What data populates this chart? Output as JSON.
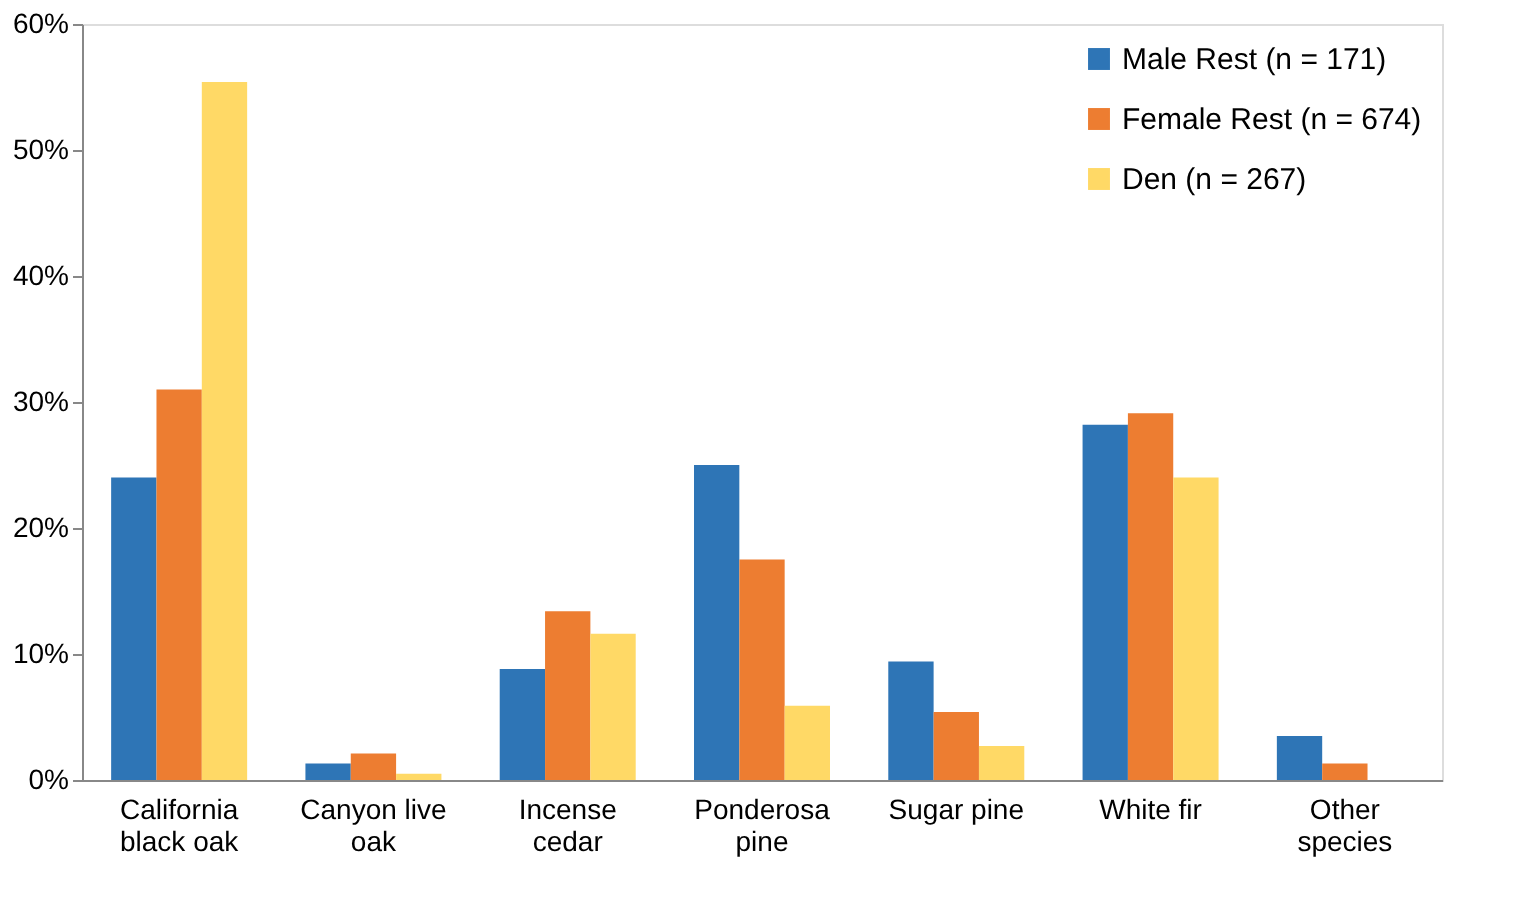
{
  "chart_data": {
    "type": "bar",
    "categories": [
      "California black oak",
      "Canyon live oak",
      "Incense cedar",
      "Ponderosa pine",
      "Sugar pine",
      "White fir",
      "Other species"
    ],
    "series": [
      {
        "name": "Male Rest (n = 171)",
        "color": "#2e75b6",
        "values": [
          24.0,
          1.3,
          8.8,
          25.0,
          9.4,
          28.2,
          3.5
        ]
      },
      {
        "name": "Female Rest (n = 674)",
        "color": "#ed7d31",
        "values": [
          31.0,
          2.1,
          13.4,
          17.5,
          5.4,
          29.1,
          1.3
        ]
      },
      {
        "name": "Den (n = 267)",
        "color": "#ffd966",
        "values": [
          55.4,
          0.5,
          11.6,
          5.9,
          2.7,
          24.0,
          null
        ]
      }
    ],
    "ylim": [
      0,
      60
    ],
    "yticks": [
      {
        "value": 0,
        "label": "0%"
      },
      {
        "value": 10,
        "label": "10%"
      },
      {
        "value": 20,
        "label": "20%"
      },
      {
        "value": 30,
        "label": "30%"
      },
      {
        "value": 40,
        "label": "40%"
      },
      {
        "value": 50,
        "label": "50%"
      },
      {
        "value": 60,
        "label": "60%"
      }
    ],
    "grid": false,
    "legend": "top right"
  }
}
